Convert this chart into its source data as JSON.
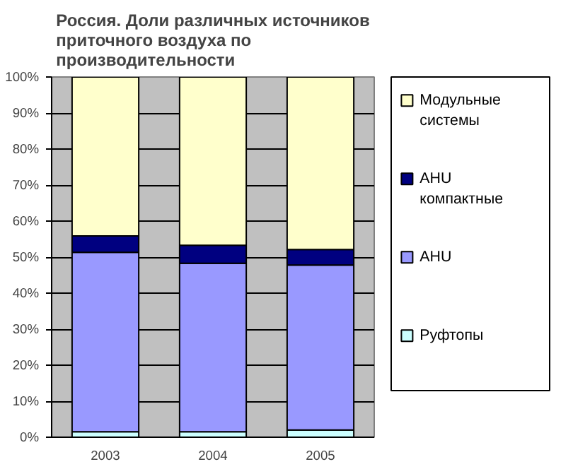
{
  "chart_data": {
    "type": "bar",
    "stacked": true,
    "title": "Россия. Доли различных источников приточного воздуха по производительности",
    "categories": [
      "2003",
      "2004",
      "2005"
    ],
    "series": [
      {
        "name": "Руфтопы",
        "color": "#ccffff",
        "values": [
          1.5,
          1.5,
          2.0
        ]
      },
      {
        "name": "AHU",
        "color": "#9999ff",
        "values": [
          49.8,
          46.8,
          45.8
        ]
      },
      {
        "name": "AHU компактные",
        "color": "#000080",
        "values": [
          4.6,
          5.0,
          4.3
        ]
      },
      {
        "name": "Модульные системы",
        "color": "#ffffcc",
        "values": [
          44.1,
          46.7,
          47.9
        ]
      }
    ],
    "ylim": [
      0,
      100
    ],
    "yticks": [
      {
        "value": 0,
        "label": "0%"
      },
      {
        "value": 10,
        "label": "10%"
      },
      {
        "value": 20,
        "label": "20%"
      },
      {
        "value": 30,
        "label": "30%"
      },
      {
        "value": 40,
        "label": "40%"
      },
      {
        "value": 50,
        "label": "50%"
      },
      {
        "value": 60,
        "label": "60%"
      },
      {
        "value": 70,
        "label": "70%"
      },
      {
        "value": 80,
        "label": "80%"
      },
      {
        "value": 90,
        "label": "90%"
      },
      {
        "value": 100,
        "label": "100%"
      }
    ],
    "grid": "y",
    "legend": "right"
  }
}
